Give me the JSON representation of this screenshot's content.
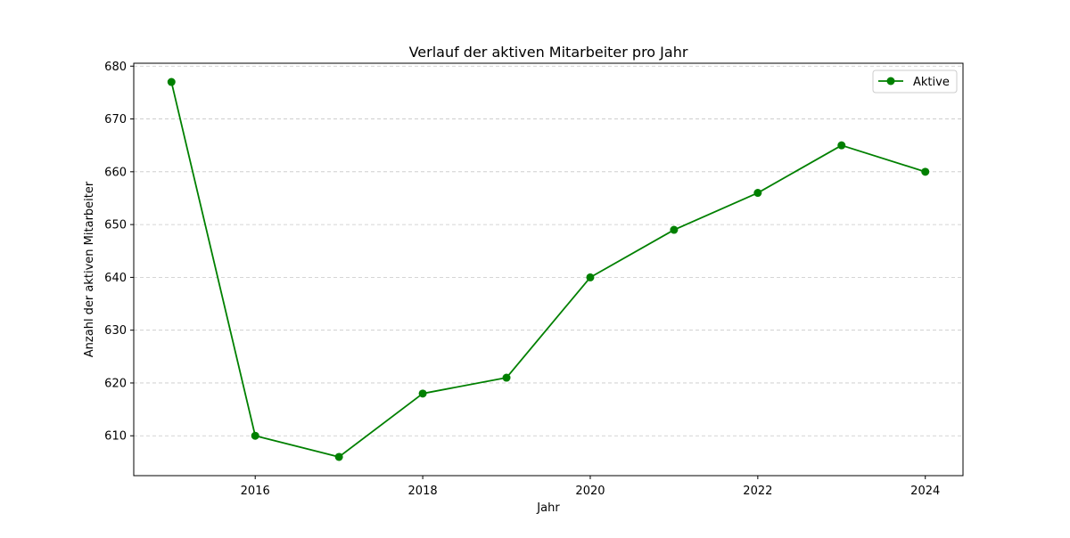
{
  "chart_data": {
    "type": "line",
    "title": "Verlauf der aktiven Mitarbeiter pro Jahr",
    "xlabel": "Jahr",
    "ylabel": "Anzahl der aktiven Mitarbeiter",
    "x": [
      2015,
      2016,
      2017,
      2018,
      2019,
      2020,
      2021,
      2022,
      2023,
      2024
    ],
    "series": [
      {
        "name": "Aktive",
        "values": [
          677,
          610,
          606,
          618,
          621,
          640,
          649,
          656,
          665,
          660
        ],
        "color": "#008000",
        "marker": "circle"
      }
    ],
    "xlim": [
      2014.55,
      2024.45
    ],
    "ylim": [
      602.45,
      680.55
    ],
    "x_ticks": [
      "2016",
      "2018",
      "2020",
      "2022",
      "2024"
    ],
    "y_ticks": [
      "610",
      "620",
      "630",
      "640",
      "650",
      "660",
      "670",
      "680"
    ],
    "grid": {
      "axis": "y",
      "style": "dashed",
      "color": "#c8c8c8"
    },
    "legend_position": "top-right"
  }
}
